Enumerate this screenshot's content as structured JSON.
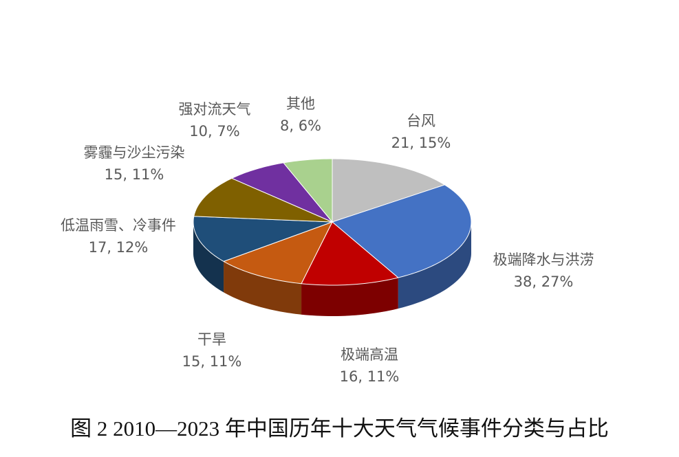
{
  "chart_data": {
    "type": "pie3d",
    "caption": "图 2 2010—2023 年中国历年十大天气气候事件分类与占比",
    "categories": [
      "台风",
      "极端降水与洪涝",
      "极端高温",
      "干旱",
      "低温雨雪、冷事件",
      "雾霾与沙尘污染",
      "强对流天气",
      "其他"
    ],
    "values": [
      21,
      38,
      16,
      15,
      17,
      15,
      10,
      8
    ],
    "value_labels": [
      "21, 15%",
      "38, 27%",
      "16, 11%",
      "15, 11%",
      "17, 12%",
      "15, 11%",
      "10, 7%",
      "8, 6%"
    ],
    "colors": [
      "#bfbfbf",
      "#4472c4",
      "#c00000",
      "#c55a11",
      "#1f4e79",
      "#7f6000",
      "#7030a0",
      "#a9d18e"
    ]
  }
}
